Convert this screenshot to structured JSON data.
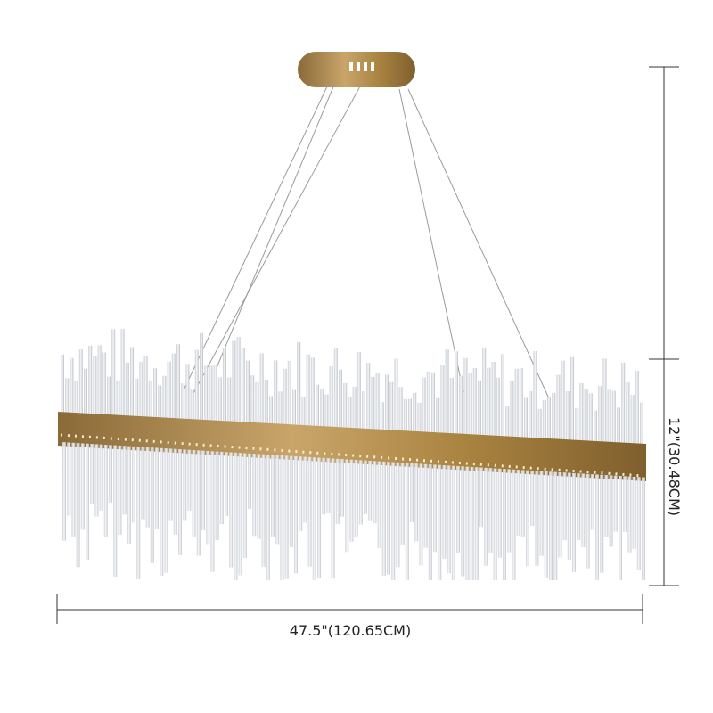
{
  "product": {
    "dimensions": {
      "width_label": "47.5\"(120.65CM)",
      "height_label": "12\"(30.48CM)"
    },
    "colors": {
      "brass": "#b08a4a",
      "crystal": "#e4e8ec",
      "dimension_line": "#333333"
    }
  }
}
